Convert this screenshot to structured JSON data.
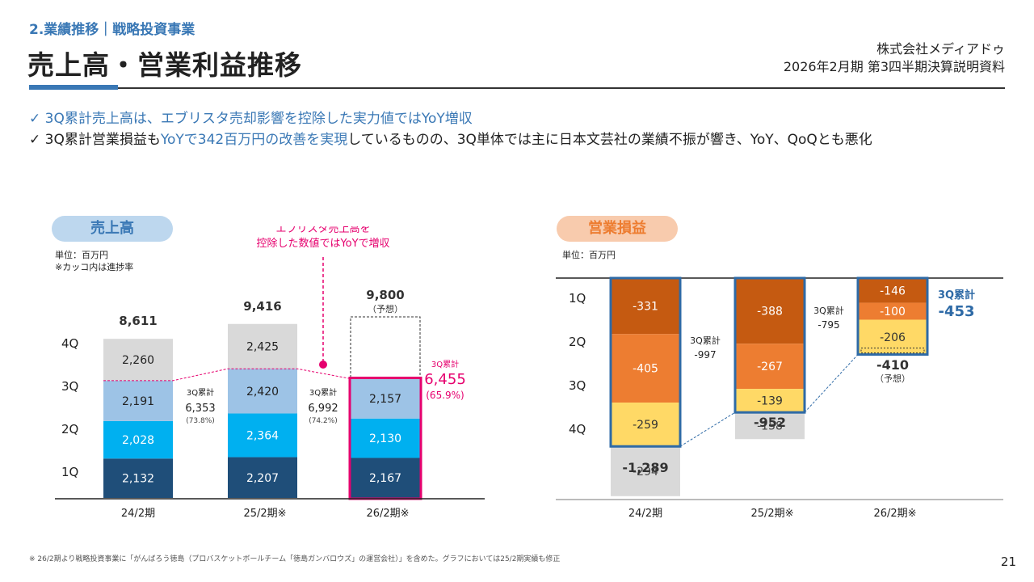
{
  "header": {
    "section": "2.業績推移｜戦略投資事業",
    "title": "売上高・営業利益推移",
    "company": "株式会社メディアドゥ",
    "document": "2026年2月期 第3四半期決算説明資料"
  },
  "bullets": [
    {
      "check": "✓",
      "parts": [
        {
          "text": "3Q累計売上高は、エブリスタ売却影響を控除した実力値ではYoY増収",
          "blue": true
        }
      ]
    },
    {
      "check": "✓",
      "parts": [
        {
          "text": "3Q累計営業損益も",
          "blue": false
        },
        {
          "text": "YoYで342百万円の改善を実現",
          "blue": true
        },
        {
          "text": "しているものの、3Q単体では主に日本文芸社の業績不振が響き、YoY、QoQとも悪化",
          "blue": false
        }
      ]
    }
  ],
  "colors": {
    "q1": "#1f4e79",
    "q2": "#00b0f0",
    "q3_sales": "#9dc3e6",
    "q4": "#d9d9d9",
    "op_q1": "#c55a11",
    "op_q2": "#ed7d31",
    "op_q3": "#ffd966",
    "accent_blue": "#3a78b5",
    "magenta": "#e6006e",
    "sales_pill": "#bdd7ee",
    "op_pill": "#f8cbad",
    "op_pill_text": "#ed7d31"
  },
  "footnote": "※ 26/2期より戦略投資事業に「がんばろう徳島（プロバスケットボールチーム「徳島ガンバロウズ」の運営会社）」を含めた。グラフにおいては25/2期実績も修正",
  "page_number": "21",
  "chart_data": [
    {
      "type": "bar",
      "stacked": true,
      "title": "売上高",
      "unit_note": "単位：百万円",
      "progress_note": "※カッコ内は進捗率",
      "categories": [
        "24/2期",
        "25/2期※",
        "26/2期※"
      ],
      "row_labels": [
        "4Q",
        "3Q",
        "2Q",
        "1Q"
      ],
      "series": [
        {
          "name": "1Q",
          "values": [
            2132,
            2207,
            2167
          ]
        },
        {
          "name": "2Q",
          "values": [
            2028,
            2364,
            2130
          ]
        },
        {
          "name": "3Q",
          "values": [
            2191,
            2420,
            2157
          ]
        },
        {
          "name": "4Q",
          "values": [
            2260,
            2425,
            null
          ]
        }
      ],
      "totals": [
        "8,611",
        "9,416",
        "9,800"
      ],
      "forecast_label": "（予想）",
      "forecast_total": 9800,
      "cumulative_3q": [
        {
          "label": "3Q累計",
          "value": "6,353",
          "progress": "(73.8%)"
        },
        {
          "label": "3Q累計",
          "value": "6,992",
          "progress": "(74.2%)"
        },
        {
          "label": "3Q累計",
          "value": "6,455",
          "progress": "(65.9%)"
        }
      ],
      "annotation": [
        "エブリスタ売上高を",
        "控除した数値ではYoYで増収"
      ],
      "ylim": [
        0,
        10500
      ]
    },
    {
      "type": "bar",
      "stacked": true,
      "title": "営業損益",
      "unit_note": "単位：百万円",
      "categories": [
        "24/2期",
        "25/2期※",
        "26/2期※"
      ],
      "row_labels": [
        "1Q",
        "2Q",
        "3Q",
        "4Q"
      ],
      "series": [
        {
          "name": "1Q",
          "values": [
            -331,
            -388,
            -146
          ]
        },
        {
          "name": "2Q",
          "values": [
            -405,
            -267,
            -100
          ]
        },
        {
          "name": "3Q",
          "values": [
            -259,
            -139,
            -206
          ]
        },
        {
          "name": "4Q",
          "values": [
            -294,
            -158,
            null
          ]
        }
      ],
      "totals": [
        "-1,289",
        "-952",
        "-410"
      ],
      "forecast_label": "（予想）",
      "cumulative_3q": [
        {
          "label": "3Q累計",
          "value": "-997"
        },
        {
          "label": "3Q累計",
          "value": "-795"
        },
        {
          "label": "3Q累計",
          "value": "-453"
        }
      ],
      "ylim": [
        -1400,
        0
      ]
    }
  ]
}
